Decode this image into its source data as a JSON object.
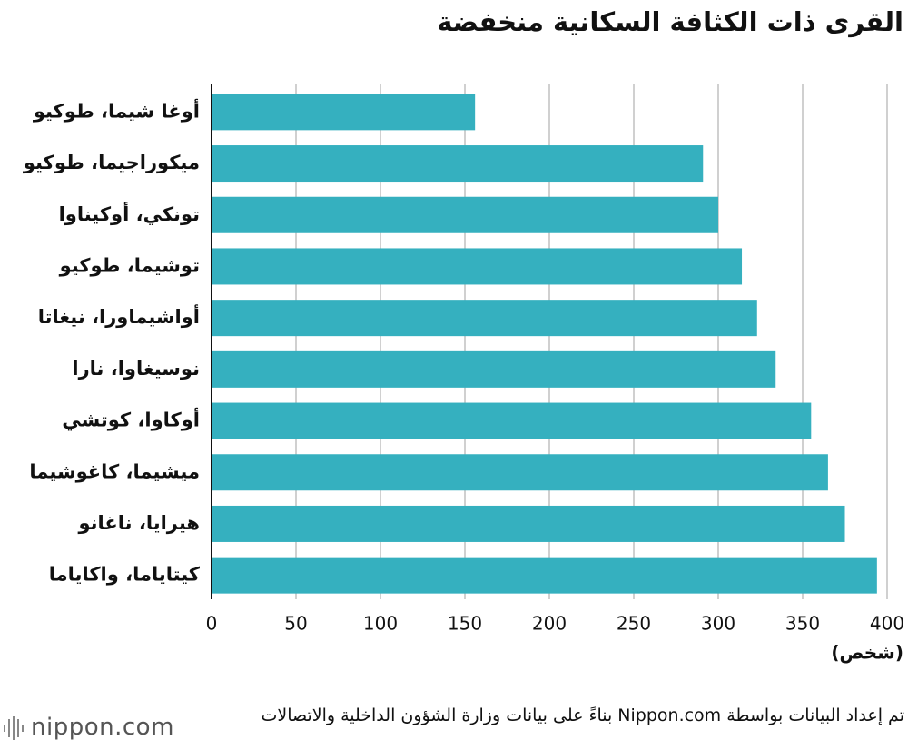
{
  "chart_data": {
    "type": "barh",
    "title": "القرى ذات الكثافة السكانية منخفضة",
    "categories": [
      "أوغا شيما، طوكيو",
      "ميكوراجيما، طوكيو",
      "تونكي، أوكيناوا",
      "توشيما، طوكيو",
      "أواشيماورا، نيغاتا",
      "نوسيغاوا، نارا",
      "أوكاوا، كوتشي",
      "ميشيما، كاغوشيما",
      "هيرايا، ناغانو",
      "كيتاياما، واكاياما"
    ],
    "values": [
      156,
      291,
      300,
      314,
      323,
      334,
      355,
      365,
      375,
      394
    ],
    "color": "#35b0bf",
    "xlim": [
      0,
      400
    ],
    "xticks": [
      0,
      50,
      100,
      150,
      200,
      250,
      300,
      350,
      400
    ],
    "xlabel": "(شخص)",
    "grid": true
  },
  "source": "تم إعداد البيانات بواسطة Nippon.com بناءً على بيانات وزارة الشؤون الداخلية والاتصالات",
  "logo": "nippon.com"
}
